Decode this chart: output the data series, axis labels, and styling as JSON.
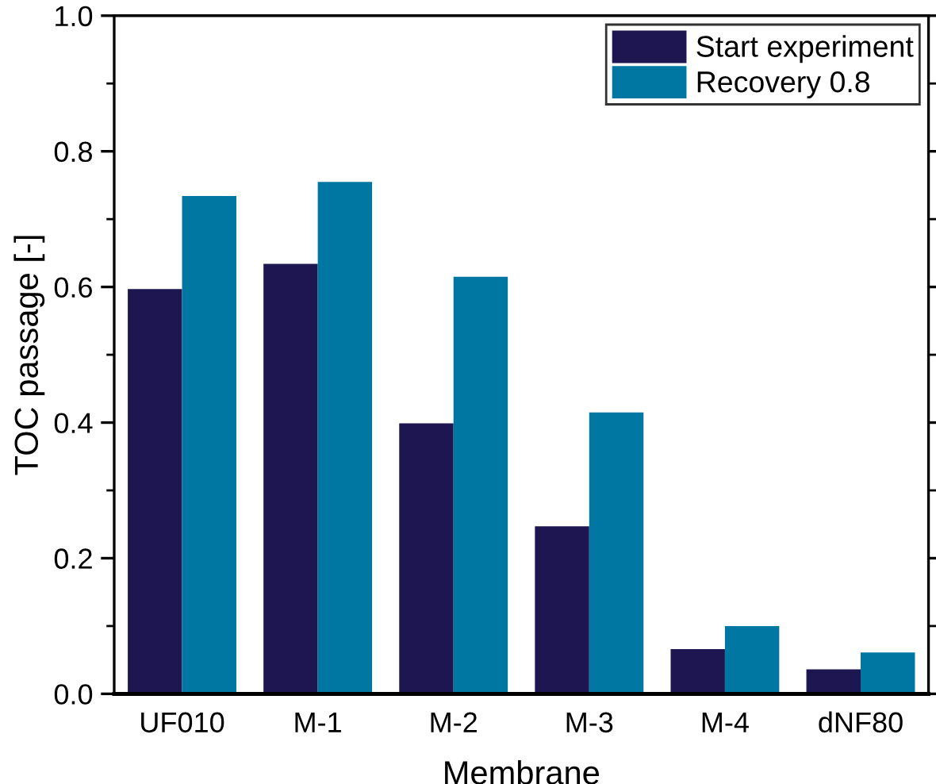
{
  "chart_data": {
    "type": "bar",
    "xlabel": "Membrane",
    "ylabel": "TOC passage [-]",
    "categories": [
      "UF010",
      "M-1",
      "M-2",
      "M-3",
      "M-4",
      "dNF80"
    ],
    "series": [
      {
        "name": "Start experiment",
        "color": "#1e1650",
        "values": [
          0.597,
          0.634,
          0.399,
          0.247,
          0.066,
          0.036
        ]
      },
      {
        "name": "Recovery 0.8",
        "color": "#0077a3",
        "values": [
          0.734,
          0.755,
          0.615,
          0.415,
          0.1,
          0.061
        ]
      }
    ],
    "ylim": [
      0,
      1.0
    ],
    "yticks": [
      {
        "value": 0,
        "label": "0.0"
      },
      0.2,
      0.4,
      0.6,
      0.8,
      {
        "value": 1.0,
        "label": "1.0"
      }
    ],
    "grid": false,
    "legend": "top right"
  }
}
